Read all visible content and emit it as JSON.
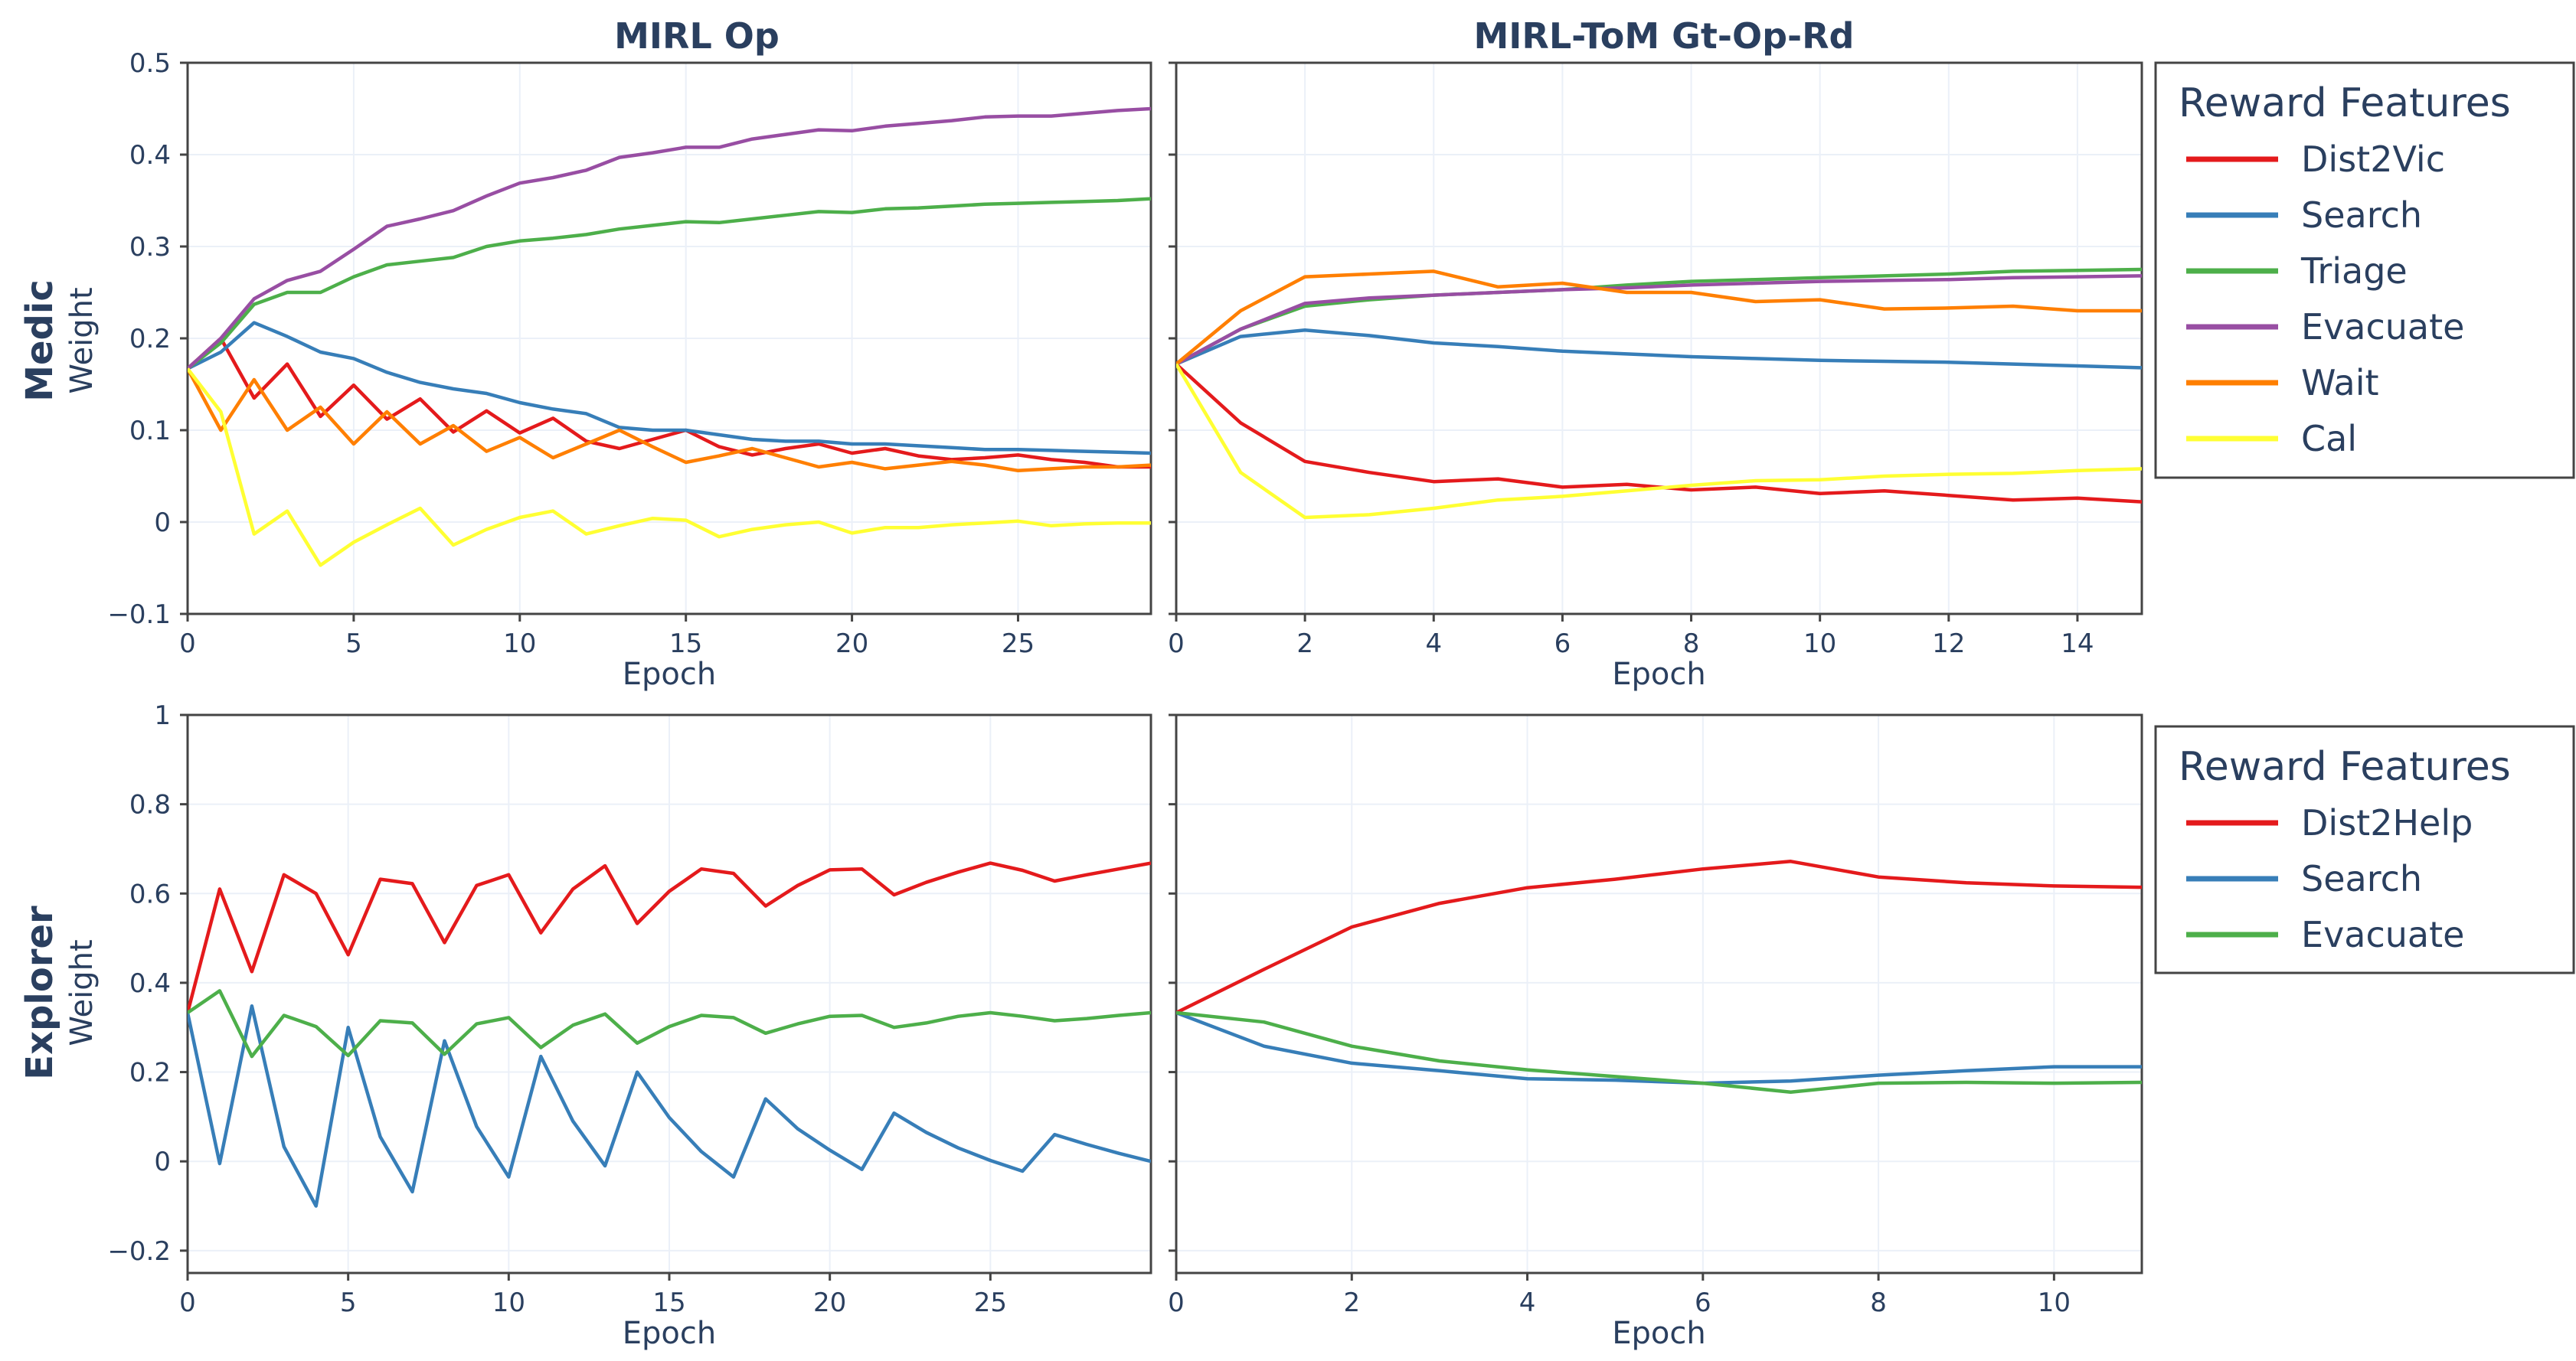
{
  "figure": {
    "col_titles": [
      "MIRL Op",
      "MIRL-ToM Gt-Op-Rd"
    ],
    "row_titles": [
      "Medic",
      "Explorer"
    ],
    "ylabel": "Weight",
    "xlabel": "Epoch"
  },
  "legends": [
    {
      "title": "Reward Features",
      "items": [
        {
          "name": "Dist2Vic",
          "color": "#e41a1c"
        },
        {
          "name": "Search",
          "color": "#377eb8"
        },
        {
          "name": "Triage",
          "color": "#4daf4a"
        },
        {
          "name": "Evacuate",
          "color": "#984ea3"
        },
        {
          "name": "Wait",
          "color": "#ff7f00"
        },
        {
          "name": "Cal",
          "color": "#ffff33"
        }
      ]
    },
    {
      "title": "Reward Features",
      "items": [
        {
          "name": "Dist2Help",
          "color": "#e41a1c"
        },
        {
          "name": "Search",
          "color": "#377eb8"
        },
        {
          "name": "Evacuate",
          "color": "#4daf4a"
        }
      ]
    }
  ],
  "chart_data": [
    {
      "type": "line",
      "title": "MIRL Op",
      "row": "Medic",
      "xlabel": "Epoch",
      "ylabel": "Weight",
      "xlim": [
        0,
        29
      ],
      "ylim": [
        -0.1,
        0.5
      ],
      "xticks": [
        0,
        5,
        10,
        15,
        20,
        25
      ],
      "yticks": [
        -0.1,
        0,
        0.1,
        0.2,
        0.3,
        0.4,
        0.5
      ],
      "ytick_labels": [
        "−0.1",
        "0",
        "0.1",
        "0.2",
        "0.3",
        "0.4",
        "0.5"
      ],
      "x": [
        0,
        1,
        2,
        3,
        4,
        5,
        6,
        7,
        8,
        9,
        10,
        11,
        12,
        13,
        14,
        15,
        16,
        17,
        18,
        19,
        20,
        21,
        22,
        23,
        24,
        25,
        26,
        27,
        28,
        29
      ],
      "series": [
        {
          "name": "Dist2Vic",
          "color": "#e41a1c",
          "values": [
            0.167,
            0.2,
            0.135,
            0.172,
            0.115,
            0.149,
            0.112,
            0.134,
            0.098,
            0.121,
            0.097,
            0.113,
            0.088,
            0.08,
            0.09,
            0.1,
            0.082,
            0.073,
            0.08,
            0.085,
            0.075,
            0.08,
            0.072,
            0.068,
            0.07,
            0.073,
            0.068,
            0.065,
            0.06,
            0.06
          ]
        },
        {
          "name": "Search",
          "color": "#377eb8",
          "values": [
            0.167,
            0.185,
            0.217,
            0.202,
            0.185,
            0.178,
            0.163,
            0.152,
            0.145,
            0.14,
            0.13,
            0.123,
            0.118,
            0.103,
            0.1,
            0.1,
            0.095,
            0.09,
            0.088,
            0.088,
            0.085,
            0.085,
            0.083,
            0.081,
            0.079,
            0.079,
            0.078,
            0.077,
            0.076,
            0.075
          ]
        },
        {
          "name": "Triage",
          "color": "#4daf4a",
          "values": [
            0.167,
            0.195,
            0.237,
            0.25,
            0.25,
            0.267,
            0.28,
            0.284,
            0.288,
            0.3,
            0.306,
            0.309,
            0.313,
            0.319,
            0.323,
            0.327,
            0.326,
            0.33,
            0.334,
            0.338,
            0.337,
            0.341,
            0.342,
            0.344,
            0.346,
            0.347,
            0.348,
            0.349,
            0.35,
            0.352
          ]
        },
        {
          "name": "Evacuate",
          "color": "#984ea3",
          "values": [
            0.167,
            0.2,
            0.243,
            0.263,
            0.273,
            0.297,
            0.322,
            0.33,
            0.339,
            0.355,
            0.369,
            0.375,
            0.383,
            0.397,
            0.402,
            0.408,
            0.408,
            0.417,
            0.422,
            0.427,
            0.426,
            0.431,
            0.434,
            0.437,
            0.441,
            0.442,
            0.442,
            0.445,
            0.448,
            0.45
          ]
        },
        {
          "name": "Wait",
          "color": "#ff7f00",
          "values": [
            0.167,
            0.1,
            0.155,
            0.1,
            0.125,
            0.085,
            0.12,
            0.085,
            0.105,
            0.077,
            0.092,
            0.07,
            0.085,
            0.1,
            0.082,
            0.065,
            0.072,
            0.08,
            0.07,
            0.06,
            0.065,
            0.058,
            0.062,
            0.066,
            0.062,
            0.056,
            0.058,
            0.06,
            0.06,
            0.062
          ]
        },
        {
          "name": "Cal",
          "color": "#ffff33",
          "values": [
            0.167,
            0.12,
            -0.013,
            0.012,
            -0.047,
            -0.022,
            -0.003,
            0.015,
            -0.025,
            -0.008,
            0.005,
            0.012,
            -0.013,
            -0.004,
            0.004,
            0.002,
            -0.016,
            -0.008,
            -0.003,
            0,
            -0.012,
            -0.006,
            -0.006,
            -0.003,
            -0.001,
            0.001,
            -0.004,
            -0.002,
            -0.001,
            -0.001
          ]
        }
      ]
    },
    {
      "type": "line",
      "title": "MIRL-ToM Gt-Op-Rd",
      "row": "Medic",
      "xlabel": "Epoch",
      "ylabel": "",
      "xlim": [
        0,
        15
      ],
      "ylim": [
        -0.1,
        0.5
      ],
      "xticks": [
        0,
        2,
        4,
        6,
        8,
        10,
        12,
        14
      ],
      "yticks": [
        -0.1,
        0,
        0.1,
        0.2,
        0.3,
        0.4,
        0.5
      ],
      "x": [
        0,
        1,
        2,
        3,
        4,
        5,
        6,
        7,
        8,
        9,
        10,
        11,
        12,
        13,
        14,
        15
      ],
      "series": [
        {
          "name": "Dist2Vic",
          "color": "#e41a1c",
          "values": [
            0.172,
            0.108,
            0.066,
            0.054,
            0.044,
            0.047,
            0.038,
            0.041,
            0.035,
            0.038,
            0.031,
            0.034,
            0.029,
            0.024,
            0.026,
            0.022
          ]
        },
        {
          "name": "Search",
          "color": "#377eb8",
          "values": [
            0.172,
            0.202,
            0.209,
            0.203,
            0.195,
            0.191,
            0.186,
            0.183,
            0.18,
            0.178,
            0.176,
            0.175,
            0.174,
            0.172,
            0.17,
            0.168
          ]
        },
        {
          "name": "Triage",
          "color": "#4daf4a",
          "values": [
            0.172,
            0.21,
            0.235,
            0.242,
            0.247,
            0.25,
            0.253,
            0.258,
            0.262,
            0.264,
            0.266,
            0.268,
            0.27,
            0.273,
            0.274,
            0.275
          ]
        },
        {
          "name": "Evacuate",
          "color": "#984ea3",
          "values": [
            0.172,
            0.21,
            0.238,
            0.244,
            0.247,
            0.25,
            0.253,
            0.255,
            0.258,
            0.26,
            0.262,
            0.263,
            0.264,
            0.266,
            0.267,
            0.268
          ]
        },
        {
          "name": "Wait",
          "color": "#ff7f00",
          "values": [
            0.172,
            0.23,
            0.267,
            0.27,
            0.273,
            0.256,
            0.26,
            0.25,
            0.25,
            0.24,
            0.242,
            0.232,
            0.233,
            0.235,
            0.23,
            0.23
          ]
        },
        {
          "name": "Cal",
          "color": "#ffff33",
          "values": [
            0.172,
            0.054,
            0.005,
            0.008,
            0.015,
            0.024,
            0.028,
            0.034,
            0.04,
            0.045,
            0.046,
            0.05,
            0.052,
            0.053,
            0.056,
            0.058
          ]
        }
      ]
    },
    {
      "type": "line",
      "title": "MIRL Op",
      "row": "Explorer",
      "xlabel": "Epoch",
      "ylabel": "Weight",
      "xlim": [
        0,
        30
      ],
      "ylim": [
        -0.25,
        1.0
      ],
      "xticks": [
        0,
        5,
        10,
        15,
        20,
        25
      ],
      "yticks": [
        -0.2,
        0,
        0.2,
        0.4,
        0.6,
        0.8,
        1
      ],
      "ytick_labels": [
        "−0.2",
        "0",
        "0.2",
        "0.4",
        "0.6",
        "0.8",
        "1"
      ],
      "x": [
        0,
        1,
        2,
        3,
        4,
        5,
        6,
        7,
        8,
        9,
        10,
        11,
        12,
        13,
        14,
        15,
        16,
        17,
        18,
        19,
        20,
        21,
        22,
        23,
        24,
        25,
        26,
        27,
        28,
        29,
        30
      ],
      "series": [
        {
          "name": "Dist2Help",
          "color": "#e41a1c",
          "values": [
            0.333,
            0.61,
            0.425,
            0.642,
            0.6,
            0.463,
            0.632,
            0.622,
            0.49,
            0.618,
            0.642,
            0.512,
            0.61,
            0.662,
            0.533,
            0.605,
            0.655,
            0.645,
            0.572,
            0.618,
            0.653,
            0.655,
            0.597,
            0.625,
            0.648,
            0.668,
            0.652,
            0.628,
            0.642,
            0.655,
            0.668
          ]
        },
        {
          "name": "Search",
          "color": "#377eb8",
          "values": [
            0.333,
            -0.005,
            0.348,
            0.033,
            -0.1,
            0.3,
            0.055,
            -0.068,
            0.27,
            0.078,
            -0.035,
            0.235,
            0.09,
            -0.01,
            0.2,
            0.098,
            0.022,
            -0.035,
            0.14,
            0.073,
            0.025,
            -0.018,
            0.108,
            0.065,
            0.03,
            0.002,
            -0.022,
            0.06,
            0.038,
            0.018,
            0
          ]
        },
        {
          "name": "Evacuate",
          "color": "#4daf4a",
          "values": [
            0.333,
            0.382,
            0.235,
            0.327,
            0.302,
            0.237,
            0.315,
            0.31,
            0.24,
            0.308,
            0.322,
            0.255,
            0.305,
            0.33,
            0.265,
            0.302,
            0.327,
            0.322,
            0.287,
            0.308,
            0.325,
            0.327,
            0.3,
            0.31,
            0.325,
            0.333,
            0.325,
            0.315,
            0.32,
            0.327,
            0.333
          ]
        }
      ]
    },
    {
      "type": "line",
      "title": "MIRL-ToM Gt-Op-Rd",
      "row": "Explorer",
      "xlabel": "Epoch",
      "ylabel": "",
      "xlim": [
        0,
        11
      ],
      "ylim": [
        -0.25,
        1.0
      ],
      "xticks": [
        0,
        2,
        4,
        6,
        8,
        10
      ],
      "yticks": [
        -0.2,
        0,
        0.2,
        0.4,
        0.6,
        0.8,
        1
      ],
      "x": [
        0,
        1,
        2,
        3,
        4,
        5,
        6,
        7,
        8,
        9,
        10,
        11
      ],
      "series": [
        {
          "name": "Dist2Help",
          "color": "#e41a1c",
          "values": [
            0.333,
            0.43,
            0.525,
            0.578,
            0.613,
            0.632,
            0.655,
            0.672,
            0.637,
            0.624,
            0.617,
            0.614
          ]
        },
        {
          "name": "Search",
          "color": "#377eb8",
          "values": [
            0.333,
            0.258,
            0.22,
            0.203,
            0.185,
            0.182,
            0.175,
            0.18,
            0.193,
            0.203,
            0.212,
            0.212
          ]
        },
        {
          "name": "Evacuate",
          "color": "#4daf4a",
          "values": [
            0.333,
            0.312,
            0.258,
            0.225,
            0.205,
            0.19,
            0.175,
            0.155,
            0.175,
            0.177,
            0.175,
            0.177
          ]
        }
      ]
    }
  ]
}
